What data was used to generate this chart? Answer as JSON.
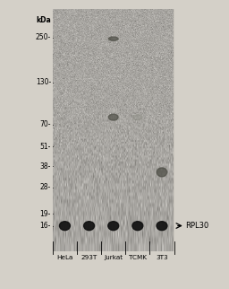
{
  "bg_color": "#d4d0c8",
  "blot_bg": "#c8c4bc",
  "kda_labels": [
    "250-",
    "130-",
    "70-",
    "51-",
    "38-",
    "28-",
    "19-",
    "16-"
  ],
  "kda_values": [
    250,
    130,
    70,
    51,
    38,
    28,
    19,
    16
  ],
  "kda_header": "kDa",
  "lane_labels": [
    "HeLa",
    "293T",
    "Jurkat",
    "TCMK",
    "3T3"
  ],
  "annotation_text": "RPL30",
  "band_color_main": "#111111",
  "band_color_faint": "#909088",
  "band_color_medium": "#505048",
  "nonspecific_color": "#aaaaaa"
}
